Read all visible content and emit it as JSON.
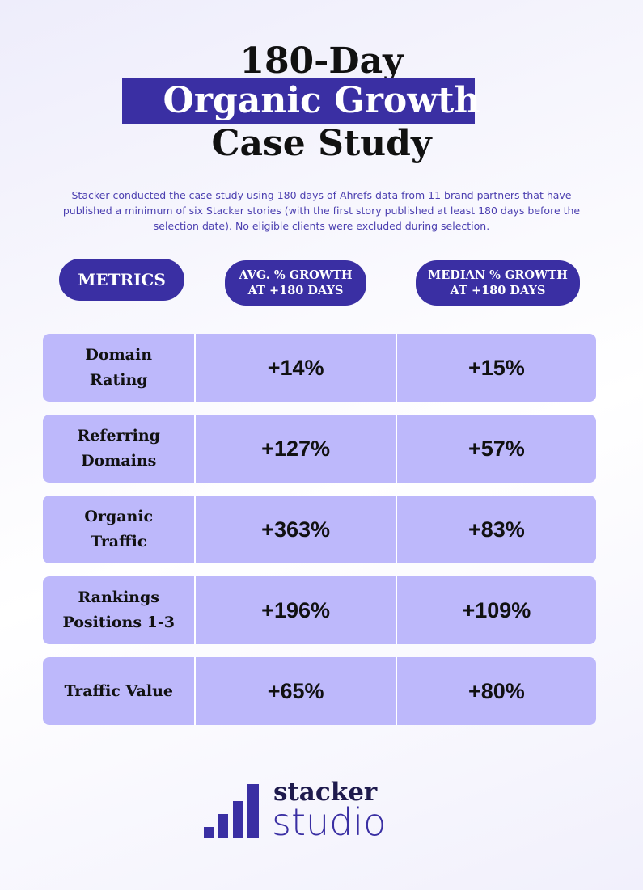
{
  "header": {
    "title_lines": [
      "180-Day",
      "Organic Growth",
      "Case Study"
    ],
    "description": "Stacker conducted the case study using 180 days of Ahrefs data from 11 brand partners that have published a minimum of six Stacker stories (with the first story published at least 180 days before the selection date). No eligible clients were excluded during selection."
  },
  "table": {
    "columns": [
      [
        "METRICS"
      ],
      [
        "AVG. % GROWTH",
        "AT +180 DAYS"
      ],
      [
        "MEDIAN % GROWTH",
        "AT +180 DAYS"
      ]
    ],
    "rows": [
      [
        [
          "Domain",
          "Rating"
        ],
        "+14%",
        "+15%"
      ],
      [
        [
          "Referring",
          "Domains"
        ],
        "+127%",
        "+57%"
      ],
      [
        [
          "Organic",
          "Traffic"
        ],
        "+363%",
        "+83%"
      ],
      [
        [
          "Rankings",
          "Positions 1-3"
        ],
        "+196%",
        "+109%"
      ],
      [
        [
          "Traffic Value"
        ],
        "+65%",
        "+80%"
      ]
    ]
  },
  "footer": {
    "logo_top": "stacker",
    "logo_bottom": "studio"
  }
}
